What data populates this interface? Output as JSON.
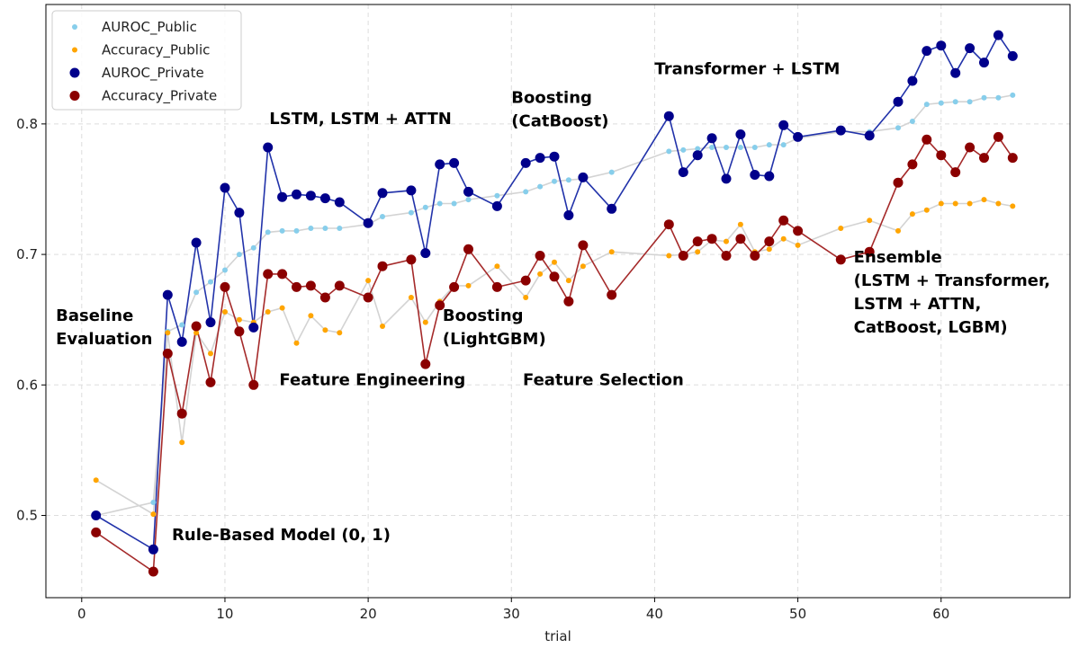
{
  "chart_data": {
    "type": "scatter",
    "xlabel": "trial",
    "ylabel": "",
    "xlim": [
      -2.5,
      69
    ],
    "ylim": [
      0.437,
      0.8915
    ],
    "xticks": [
      0,
      10,
      20,
      30,
      40,
      50,
      60
    ],
    "yticks": [
      0.5,
      0.6,
      0.7,
      0.8
    ],
    "ytick_labels": [
      "0.5",
      "0.6",
      "0.7",
      "0.8"
    ],
    "grid": true,
    "legend": {
      "position": "top-left",
      "entries": [
        "AUROC_Public",
        "Accuracy_Public",
        "AUROC_Private",
        "Accuracy_Private"
      ]
    },
    "series": [
      {
        "name": "AUROC_Public",
        "color": "#87ceeb",
        "line_color": "#d3d3d3",
        "marker_size": "small",
        "x": [
          1,
          5,
          6,
          7,
          8,
          9,
          10,
          11,
          12,
          13,
          14,
          15,
          16,
          17,
          18,
          20,
          21,
          23,
          24,
          25,
          26,
          27,
          29,
          31,
          32,
          33,
          34,
          35,
          37,
          41,
          42,
          43,
          44,
          45,
          46,
          47,
          48,
          49,
          50,
          53,
          55,
          57,
          58,
          59,
          60,
          61,
          62,
          63,
          64,
          65
        ],
        "y": [
          0.5,
          0.51,
          0.641,
          0.646,
          0.671,
          0.679,
          0.688,
          0.7,
          0.705,
          0.717,
          0.718,
          0.718,
          0.72,
          0.72,
          0.72,
          0.723,
          0.729,
          0.732,
          0.736,
          0.739,
          0.739,
          0.742,
          0.745,
          0.748,
          0.752,
          0.756,
          0.757,
          0.758,
          0.763,
          0.779,
          0.78,
          0.781,
          0.782,
          0.782,
          0.782,
          0.782,
          0.784,
          0.784,
          0.789,
          0.794,
          0.794,
          0.797,
          0.802,
          0.815,
          0.816,
          0.817,
          0.817,
          0.82,
          0.82,
          0.822
        ]
      },
      {
        "name": "Accuracy_Public",
        "color": "#ffa500",
        "line_color": "#d3d3d3",
        "marker_size": "small",
        "x": [
          1,
          5,
          6,
          7,
          8,
          9,
          10,
          11,
          12,
          13,
          14,
          15,
          16,
          17,
          18,
          20,
          21,
          23,
          24,
          25,
          26,
          27,
          29,
          31,
          32,
          33,
          34,
          35,
          37,
          41,
          42,
          43,
          44,
          45,
          46,
          47,
          48,
          49,
          50,
          53,
          55,
          57,
          58,
          59,
          60,
          61,
          62,
          63,
          64,
          65
        ],
        "y": [
          0.527,
          0.501,
          0.64,
          0.556,
          0.64,
          0.624,
          0.656,
          0.65,
          0.648,
          0.656,
          0.659,
          0.632,
          0.653,
          0.642,
          0.64,
          0.68,
          0.645,
          0.667,
          0.648,
          0.664,
          0.676,
          0.676,
          0.691,
          0.667,
          0.685,
          0.694,
          0.68,
          0.691,
          0.702,
          0.699,
          0.7,
          0.702,
          0.711,
          0.71,
          0.723,
          0.702,
          0.704,
          0.712,
          0.707,
          0.72,
          0.726,
          0.718,
          0.731,
          0.734,
          0.739,
          0.739,
          0.739,
          0.742,
          0.739,
          0.737
        ]
      },
      {
        "name": "AUROC_Private",
        "color": "#00008b",
        "line_color": "#2233aa",
        "marker_size": "large",
        "x": [
          1,
          5,
          6,
          7,
          8,
          9,
          10,
          11,
          12,
          13,
          14,
          15,
          16,
          17,
          18,
          20,
          21,
          23,
          24,
          25,
          26,
          27,
          29,
          31,
          32,
          33,
          34,
          35,
          37,
          41,
          42,
          43,
          44,
          45,
          46,
          47,
          48,
          49,
          50,
          53,
          55,
          57,
          58,
          59,
          60,
          61,
          62,
          63,
          64,
          65
        ],
        "y": [
          0.5,
          0.474,
          0.669,
          0.633,
          0.709,
          0.648,
          0.751,
          0.732,
          0.644,
          0.782,
          0.744,
          0.746,
          0.745,
          0.743,
          0.74,
          0.724,
          0.747,
          0.749,
          0.701,
          0.769,
          0.77,
          0.748,
          0.737,
          0.77,
          0.774,
          0.775,
          0.73,
          0.759,
          0.735,
          0.806,
          0.763,
          0.776,
          0.789,
          0.758,
          0.792,
          0.761,
          0.76,
          0.799,
          0.79,
          0.795,
          0.791,
          0.817,
          0.833,
          0.856,
          0.86,
          0.839,
          0.858,
          0.847,
          0.868,
          0.852
        ]
      },
      {
        "name": "Accuracy_Private",
        "color": "#8b0000",
        "line_color": "#a52a2a",
        "marker_size": "large",
        "x": [
          1,
          5,
          6,
          7,
          8,
          9,
          10,
          11,
          12,
          13,
          14,
          15,
          16,
          17,
          18,
          20,
          21,
          23,
          24,
          25,
          26,
          27,
          29,
          31,
          32,
          33,
          34,
          35,
          37,
          41,
          42,
          43,
          44,
          45,
          46,
          47,
          48,
          49,
          50,
          53,
          55,
          57,
          58,
          59,
          60,
          61,
          62,
          63,
          64,
          65
        ],
        "y": [
          0.487,
          0.457,
          0.624,
          0.578,
          0.645,
          0.602,
          0.675,
          0.641,
          0.6,
          0.685,
          0.685,
          0.675,
          0.676,
          0.667,
          0.676,
          0.667,
          0.691,
          0.696,
          0.616,
          0.661,
          0.675,
          0.704,
          0.675,
          0.68,
          0.699,
          0.683,
          0.664,
          0.707,
          0.669,
          0.723,
          0.699,
          0.71,
          0.712,
          0.699,
          0.712,
          0.699,
          0.71,
          0.726,
          0.718,
          0.696,
          0.702,
          0.755,
          0.769,
          0.788,
          0.776,
          0.763,
          0.782,
          0.774,
          0.79,
          0.774
        ]
      }
    ],
    "annotations": [
      {
        "id": "baseline",
        "lines": [
          "Baseline",
          "Evaluation"
        ],
        "x": -1.8,
        "y": 0.649
      },
      {
        "id": "rule-based",
        "lines": [
          "Rule-Based Model (0, 1)"
        ],
        "x": 6.3,
        "y": 0.481
      },
      {
        "id": "lstm-attn",
        "lines": [
          "LSTM, LSTM + ATTN"
        ],
        "x": 13.1,
        "y": 0.8
      },
      {
        "id": "feature-eng",
        "lines": [
          "Feature Engineering"
        ],
        "x": 13.8,
        "y": 0.6
      },
      {
        "id": "lightgbm",
        "lines": [
          "Boosting",
          "(LightGBM)"
        ],
        "x": 25.2,
        "y": 0.649
      },
      {
        "id": "catboost",
        "lines": [
          "Boosting",
          "(CatBoost)"
        ],
        "x": 30.0,
        "y": 0.816
      },
      {
        "id": "feature-sel",
        "lines": [
          "Feature Selection"
        ],
        "x": 30.8,
        "y": 0.6
      },
      {
        "id": "transformer",
        "lines": [
          "Transformer + LSTM"
        ],
        "x": 40.0,
        "y": 0.838
      },
      {
        "id": "ensemble",
        "lines": [
          "Ensemble",
          "(LSTM + Transformer,",
          "LSTM + ATTN,",
          "CatBoost, LGBM)"
        ],
        "x": 53.9,
        "y": 0.694
      }
    ]
  }
}
